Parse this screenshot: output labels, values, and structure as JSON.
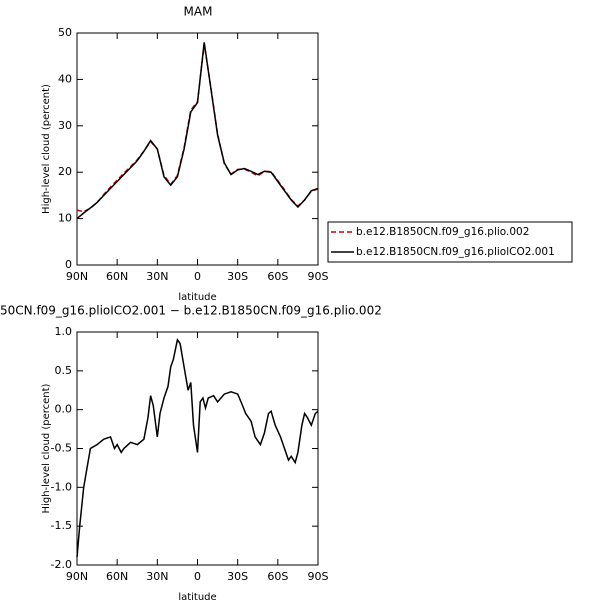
{
  "chart_data": [
    {
      "type": "line",
      "title": "MAM",
      "xlabel": "latitude",
      "ylabel": "High-level cloud (percent)",
      "x": [
        90,
        85,
        80,
        75,
        70,
        65,
        60,
        55,
        50,
        45,
        40,
        35,
        30,
        25,
        20,
        15,
        10,
        5,
        0,
        -5,
        -10,
        -15,
        -20,
        -25,
        -30,
        -35,
        -40,
        -45,
        -50,
        -55,
        -60,
        -65,
        -70,
        -75,
        -80,
        -85,
        -90
      ],
      "series": [
        {
          "name": "b.e12.B1850CN.f09_g16.plio.002",
          "color": "#cc0000",
          "dash": true,
          "values": [
            11.8,
            11.5,
            12.2,
            13.5,
            15.2,
            16.8,
            18.3,
            19.8,
            21.2,
            22.7,
            24.6,
            26.6,
            25,
            19.3,
            17.4,
            19.3,
            25.3,
            33.4,
            35.2,
            47.6,
            38.2,
            28.2,
            21.8,
            19.6,
            20.6,
            20.7,
            20,
            19.2,
            20.2,
            20.1,
            18.2,
            16.2,
            14.1,
            12.7,
            14,
            15.9,
            16.4
          ]
        },
        {
          "name": "b.e12.B1850CN.f09_g16.pliolCO2.001",
          "color": "#000000",
          "dash": false,
          "values": [
            10,
            11.2,
            12.3,
            13.5,
            15,
            16.5,
            18,
            19.5,
            21,
            22.5,
            24.5,
            26.8,
            25,
            19,
            17.2,
            19,
            25,
            33,
            35,
            48,
            38,
            28,
            22,
            19.5,
            20.5,
            20.8,
            20.2,
            19.5,
            20.2,
            20,
            18,
            16,
            14,
            12.5,
            14,
            16,
            16.5
          ]
        }
      ],
      "xlim": [
        90,
        -90
      ],
      "xticks": [
        {
          "value": 90,
          "label": "90N"
        },
        {
          "value": 60,
          "label": "60N"
        },
        {
          "value": 30,
          "label": "30N"
        },
        0,
        {
          "value": -30,
          "label": "30S"
        },
        {
          "value": -60,
          "label": "60S"
        },
        {
          "value": -90,
          "label": "90S"
        }
      ],
      "ylim": [
        0,
        50
      ],
      "yticks": [
        0,
        10,
        20,
        30,
        40,
        50
      ],
      "legend": "right"
    },
    {
      "type": "line",
      "title": "50CN.f09_g16.plioICO2.001 − b.e12.B1850CN.f09_g16.plio.002",
      "xlabel": "latitude",
      "ylabel": "High-level cloud (percent)",
      "x": [
        90,
        88,
        85,
        82,
        80,
        75,
        70,
        65,
        62,
        60,
        57,
        55,
        50,
        45,
        40,
        37,
        35,
        33,
        30,
        28,
        25,
        22,
        20,
        18,
        15,
        13,
        10,
        7,
        5,
        3,
        0,
        -2,
        -4,
        -6,
        -8,
        -12,
        -15,
        -20,
        -25,
        -30,
        -33,
        -36,
        -40,
        -43,
        -47,
        -50,
        -53,
        -55,
        -58,
        -62,
        -65,
        -68,
        -70,
        -73,
        -75,
        -78,
        -80,
        -82,
        -85,
        -88,
        -90
      ],
      "series": [
        {
          "name": null,
          "color": "#000000",
          "dash": false,
          "values": [
            -1.9,
            -1.5,
            -1.0,
            -0.7,
            -0.5,
            -0.45,
            -0.38,
            -0.35,
            -0.5,
            -0.45,
            -0.55,
            -0.5,
            -0.42,
            -0.45,
            -0.38,
            -0.1,
            0.18,
            0.05,
            -0.35,
            -0.05,
            0.15,
            0.3,
            0.55,
            0.65,
            0.9,
            0.85,
            0.55,
            0.25,
            0.35,
            -0.2,
            -0.55,
            0.1,
            0.15,
            0.02,
            0.15,
            0.18,
            0.1,
            0.2,
            0.23,
            0.2,
            0.08,
            -0.05,
            -0.15,
            -0.35,
            -0.45,
            -0.3,
            -0.05,
            -0.02,
            -0.2,
            -0.35,
            -0.5,
            -0.65,
            -0.6,
            -0.68,
            -0.55,
            -0.2,
            -0.05,
            -0.1,
            -0.2,
            -0.05,
            -0.02
          ]
        }
      ],
      "xlim": [
        90,
        -90
      ],
      "xticks": [
        {
          "value": 90,
          "label": "90N"
        },
        {
          "value": 60,
          "label": "60N"
        },
        {
          "value": 30,
          "label": "30N"
        },
        0,
        {
          "value": -30,
          "label": "30S"
        },
        {
          "value": -60,
          "label": "60S"
        },
        {
          "value": -90,
          "label": "90S"
        }
      ],
      "ylim": [
        -2,
        1
      ],
      "yticks": [
        {
          "value": -2,
          "label": "-2.0"
        },
        -1.5,
        {
          "value": -1,
          "label": "-1.0"
        },
        -0.5,
        {
          "value": 0,
          "label": "0.0"
        },
        0.5,
        {
          "value": 1,
          "label": "1.0"
        }
      ]
    }
  ]
}
